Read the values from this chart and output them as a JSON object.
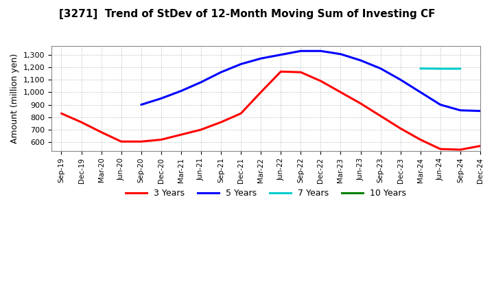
{
  "title": "[3271]  Trend of StDev of 12-Month Moving Sum of Investing CF",
  "ylabel": "Amount (million yen)",
  "background_color": "#ffffff",
  "grid_color": "#aaaaaa",
  "ylim": [
    530,
    1370
  ],
  "yticks": [
    600,
    700,
    800,
    900,
    1000,
    1100,
    1200,
    1300
  ],
  "xtick_labels": [
    "Sep-19",
    "Dec-19",
    "Mar-20",
    "Jun-20",
    "Sep-20",
    "Dec-20",
    "Mar-21",
    "Jun-21",
    "Sep-21",
    "Dec-21",
    "Mar-22",
    "Jun-22",
    "Sep-22",
    "Dec-22",
    "Mar-23",
    "Jun-23",
    "Sep-23",
    "Dec-23",
    "Mar-24",
    "Jun-24",
    "Sep-24",
    "Dec-24"
  ],
  "series_3yr": {
    "color": "#ff0000",
    "label": "3 Years",
    "x": [
      0,
      1,
      2,
      3,
      4,
      5,
      6,
      7,
      8,
      9,
      10,
      11,
      12,
      13,
      14,
      15,
      16,
      17,
      18,
      19,
      20,
      21
    ],
    "y": [
      830,
      760,
      680,
      605,
      605,
      620,
      660,
      700,
      760,
      830,
      1000,
      1165,
      1160,
      1090,
      1000,
      910,
      810,
      710,
      620,
      545,
      540,
      570
    ]
  },
  "series_5yr": {
    "color": "#0000ff",
    "label": "5 Years",
    "x": [
      4,
      5,
      6,
      7,
      8,
      9,
      10,
      11,
      12,
      13,
      14,
      15,
      16,
      17,
      18,
      19,
      20,
      21
    ],
    "y": [
      900,
      950,
      1010,
      1080,
      1160,
      1225,
      1270,
      1300,
      1330,
      1330,
      1305,
      1255,
      1190,
      1100,
      1000,
      900,
      855,
      850
    ]
  },
  "series_7yr": {
    "color": "#00cccc",
    "label": "7 Years",
    "x": [
      18,
      19,
      20
    ],
    "y": [
      1190,
      1188,
      1188
    ]
  },
  "series_10yr": {
    "color": "#008000",
    "label": "10 Years",
    "x": [],
    "y": []
  },
  "legend_labels": [
    "3 Years",
    "5 Years",
    "7 Years",
    "10 Years"
  ],
  "legend_colors": [
    "#ff0000",
    "#0000ff",
    "#00cccc",
    "#008000"
  ]
}
